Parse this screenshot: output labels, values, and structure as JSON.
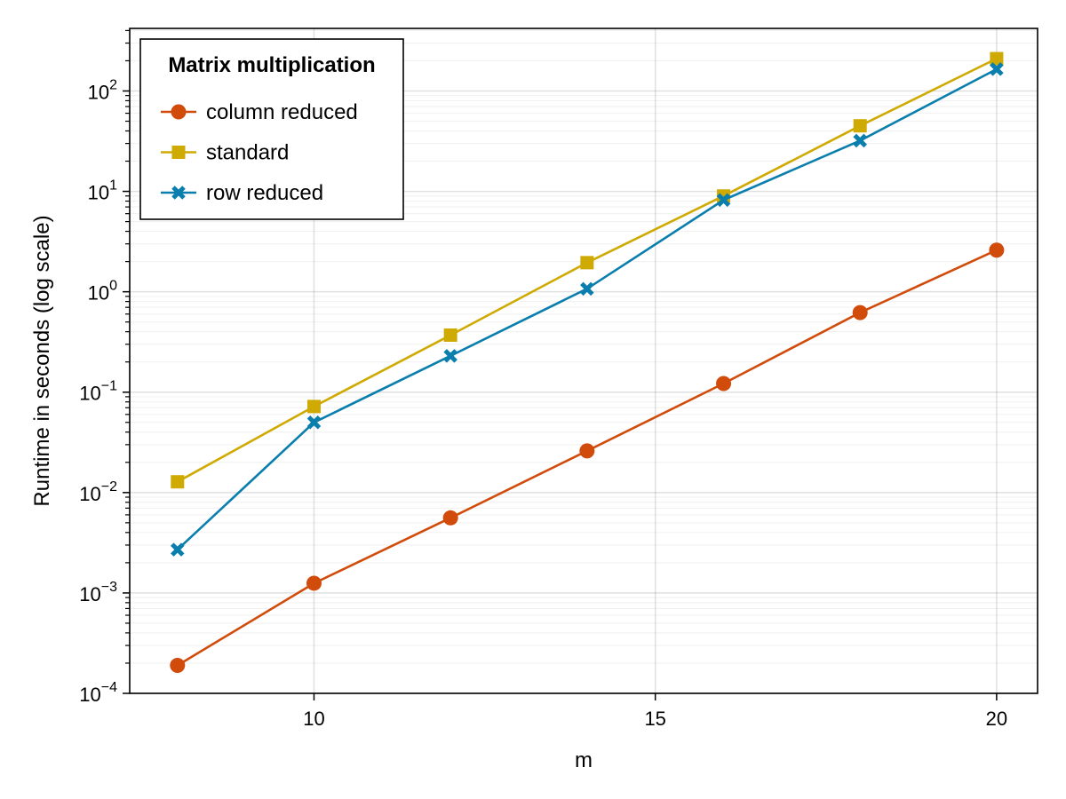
{
  "chart_data": {
    "type": "line",
    "xlabel": "m",
    "ylabel": "Runtime in seconds (log scale)",
    "y_scale": "log10",
    "xlim": [
      7.3,
      20.6
    ],
    "ylim": [
      0.0001,
      420
    ],
    "x_ticks": [
      10,
      15,
      20
    ],
    "y_ticks": [
      {
        "value": 0.0001,
        "base": "10",
        "exp": "−4"
      },
      {
        "value": 0.001,
        "base": "10",
        "exp": "−3"
      },
      {
        "value": 0.01,
        "base": "10",
        "exp": "−2"
      },
      {
        "value": 0.1,
        "base": "10",
        "exp": "−1"
      },
      {
        "value": 1,
        "base": "10",
        "exp": "0"
      },
      {
        "value": 10,
        "base": "10",
        "exp": "1"
      },
      {
        "value": 100,
        "base": "10",
        "exp": "2"
      }
    ],
    "grid": true,
    "legend": {
      "title": "Matrix multiplication",
      "position": "top-left"
    },
    "x": [
      8,
      10,
      12,
      14,
      16,
      18,
      20
    ],
    "series": [
      {
        "name": "column reduced",
        "color": "#d14b0b",
        "marker": "circle",
        "values": [
          0.00019,
          0.00125,
          0.0056,
          0.026,
          0.122,
          0.62,
          2.6
        ]
      },
      {
        "name": "standard",
        "color": "#cfaa03",
        "marker": "square",
        "values": [
          0.0128,
          0.072,
          0.37,
          1.95,
          9.0,
          45,
          210
        ]
      },
      {
        "name": "row reduced",
        "color": "#0a7ead",
        "marker": "cross",
        "values": [
          0.0027,
          0.05,
          0.23,
          1.07,
          8.2,
          32,
          165
        ]
      }
    ]
  }
}
